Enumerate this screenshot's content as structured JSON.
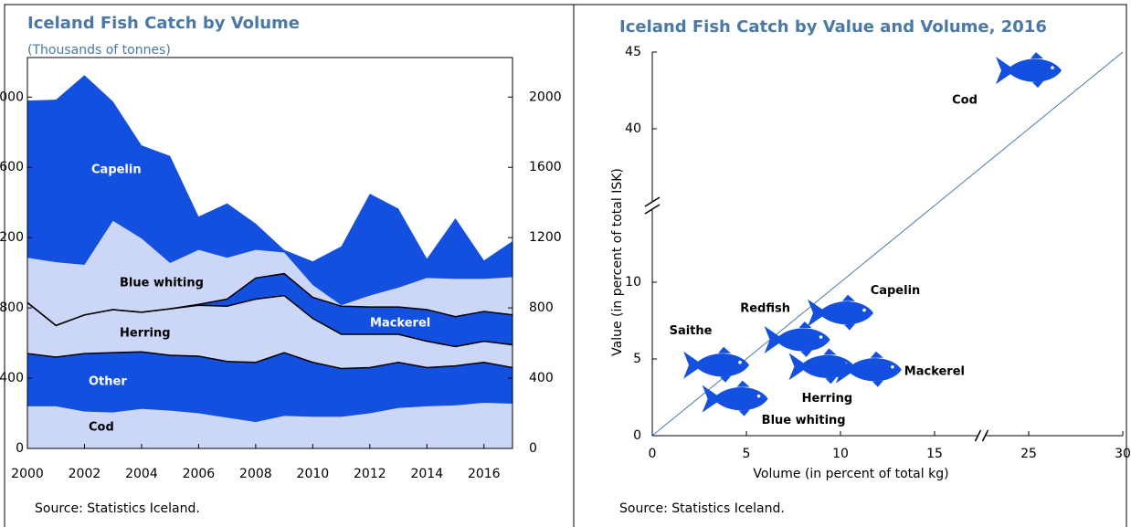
{
  "chart_data": [
    {
      "type": "stacked_area",
      "title": "Iceland Fish Catch by Volume",
      "subtitle": "(Thousands of tonnes)",
      "source": "Source: Statistics Iceland.",
      "x": [
        2000,
        2001,
        2002,
        2003,
        2004,
        2005,
        2006,
        2007,
        2008,
        2009,
        2010,
        2011,
        2012,
        2013,
        2014,
        2015,
        2016,
        2017
      ],
      "series": [
        {
          "name": "Cod",
          "color": "#ccd6f6",
          "outline": false,
          "values": [
            240,
            240,
            210,
            205,
            225,
            215,
            200,
            175,
            150,
            185,
            180,
            180,
            200,
            230,
            240,
            245,
            260,
            255
          ]
        },
        {
          "name": "Other",
          "color": "#1450e0",
          "outline": true,
          "values": [
            300,
            280,
            330,
            340,
            325,
            315,
            325,
            320,
            340,
            360,
            310,
            275,
            260,
            260,
            220,
            225,
            230,
            205
          ]
        },
        {
          "name": "Herring",
          "color": "#ccd6f6",
          "outline": true,
          "values": [
            290,
            180,
            220,
            245,
            225,
            265,
            290,
            315,
            360,
            325,
            250,
            195,
            190,
            160,
            150,
            110,
            120,
            130
          ]
        },
        {
          "name": "Mackerel",
          "color": "#1450e0",
          "outline": true,
          "values": [
            0,
            0,
            0,
            0,
            0,
            0,
            5,
            40,
            120,
            125,
            120,
            160,
            155,
            155,
            180,
            170,
            170,
            170
          ]
        },
        {
          "name": "Blue whiting",
          "color": "#ccd6f6",
          "outline": false,
          "values": [
            255,
            360,
            285,
            505,
            420,
            260,
            310,
            235,
            160,
            120,
            70,
            5,
            65,
            110,
            180,
            215,
            185,
            215
          ]
        },
        {
          "name": "Capelin",
          "color": "#1450e0",
          "outline": false,
          "values": [
            895,
            925,
            1080,
            680,
            530,
            610,
            190,
            310,
            150,
            15,
            135,
            335,
            580,
            450,
            110,
            345,
            105,
            205
          ]
        }
      ],
      "xlim": [
        2000,
        2017
      ],
      "xticks": [
        2000,
        2002,
        2004,
        2006,
        2008,
        2010,
        2012,
        2014,
        2016
      ],
      "ylim": [
        0,
        2225
      ],
      "yticks": [
        0,
        400,
        800,
        1200,
        1600,
        2000
      ],
      "y2lim": [
        0,
        2225
      ],
      "y2ticks": [
        0,
        400,
        800,
        1200,
        1600,
        2000
      ]
    },
    {
      "type": "scatter",
      "title": "Iceland Fish Catch by Value and Volume, 2016",
      "source": "Source: Statistics Iceland.",
      "xlabel": "Volume (in percent of total kg)",
      "ylabel": "Value (in percent of total ISK)",
      "labels": [
        "Cod",
        "Capelin",
        "Redfish",
        "Saithe",
        "Herring",
        "Mackerel",
        "Blue whiting"
      ],
      "x": [
        25,
        10,
        7.7,
        3.4,
        9,
        11.5,
        4.4
      ],
      "y": [
        43.8,
        8,
        6.25,
        4.6,
        4.5,
        4.3,
        2.4
      ],
      "color": "#1450e0",
      "xlim": [
        0,
        30
      ],
      "xticks": [
        0,
        5,
        10,
        15,
        25,
        30
      ],
      "xbreak": [
        17.5,
        22.5
      ],
      "ylim": [
        0,
        45
      ],
      "yticks": [
        0,
        5,
        10,
        40,
        45
      ],
      "ybreak": [
        15,
        35
      ]
    }
  ]
}
